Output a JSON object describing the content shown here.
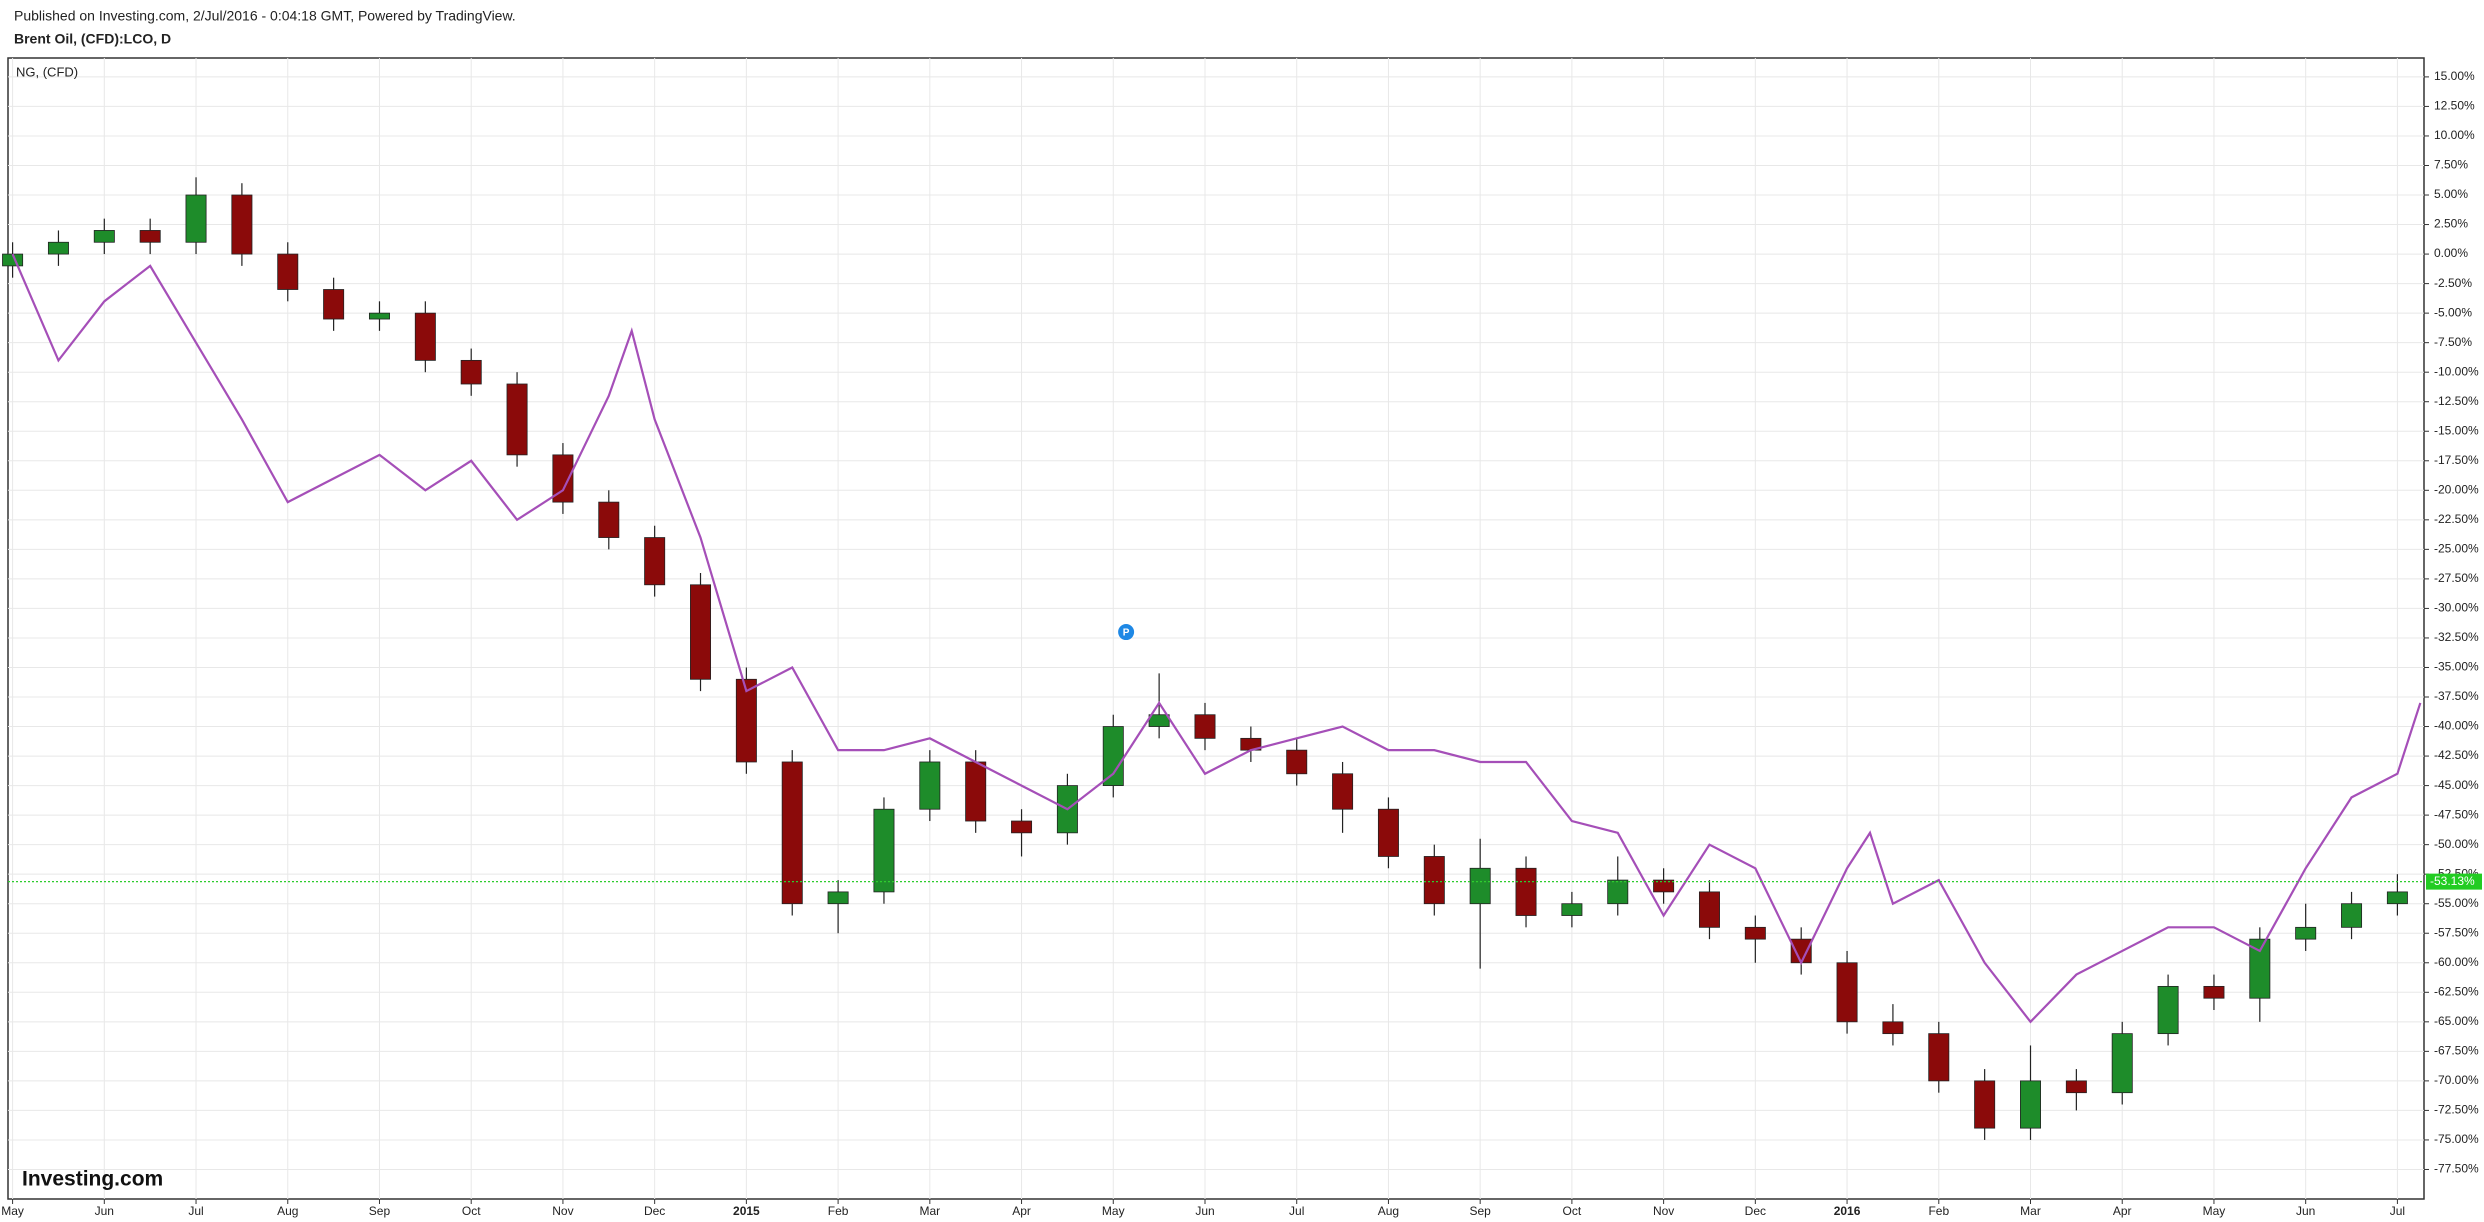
{
  "header": {
    "published": "Published on Investing.com, 2/Jul/2016 - 0:04:18 GMT, Powered by TradingView.",
    "watermark": "Investing.com"
  },
  "chart_data": {
    "type": "candlestick",
    "title": "Brent Oil, (CFD):LCO, D",
    "x": [
      0,
      0.5,
      1,
      1.5,
      2,
      2.5,
      3,
      3.5,
      4,
      4.5,
      5,
      5.5,
      6,
      6.5,
      7,
      7.5,
      8,
      8.5,
      9,
      9.5,
      10,
      10.5,
      11,
      11.5,
      12,
      12.5,
      13,
      13.5,
      14,
      14.5,
      15,
      15.5,
      16,
      16.5,
      17,
      17.5,
      18,
      18.5,
      19,
      19.5,
      20,
      20.5,
      21,
      21.5,
      22,
      22.5,
      23,
      23.5,
      24,
      24.5,
      25,
      25.5,
      26
    ],
    "open": [
      -1,
      0,
      1,
      2,
      1,
      5,
      0,
      -3,
      -5.5,
      -5,
      -9,
      -11,
      -17,
      -21,
      -24,
      -28,
      -36,
      -43,
      -55,
      -54,
      -47,
      -43,
      -48,
      -49,
      -45,
      -40,
      -39,
      -41,
      -42,
      -44,
      -47,
      -51,
      -55,
      -52,
      -56,
      -55,
      -53,
      -54,
      -57,
      -58,
      -60,
      -65,
      -66,
      -70,
      -74,
      -70,
      -71,
      -66,
      -62,
      -63,
      -58,
      -57,
      -55
    ],
    "high": [
      1,
      2,
      3,
      3,
      6.5,
      6,
      1,
      -2,
      -4,
      -4,
      -8,
      -10,
      -16,
      -20,
      -23,
      -27,
      -35,
      -42,
      -53,
      -46,
      -42,
      -42,
      -47,
      -44,
      -39,
      -35.5,
      -38,
      -40,
      -41,
      -43,
      -46,
      -50,
      -49.5,
      -51,
      -54,
      -51,
      -52,
      -53,
      -56,
      -57,
      -59,
      -63.5,
      -65,
      -69,
      -67,
      -69,
      -65,
      -61,
      -61,
      -57,
      -55,
      -54,
      -52.5
    ],
    "low": [
      -2,
      -1,
      0,
      0,
      0,
      -1,
      -4,
      -6.5,
      -6.5,
      -10,
      -12,
      -18,
      -22,
      -25,
      -29,
      -37,
      -44,
      -56,
      -57.5,
      -55,
      -48,
      -49,
      -51,
      -50,
      -46,
      -41,
      -42,
      -43,
      -45,
      -49,
      -52,
      -56,
      -60.5,
      -57,
      -57,
      -56,
      -55,
      -58,
      -60,
      -61,
      -66,
      -67,
      -71,
      -75,
      -75,
      -72.5,
      -72,
      -67,
      -64,
      -65,
      -59,
      -58,
      -56
    ],
    "close": [
      0,
      1,
      2,
      1,
      5,
      0,
      -3,
      -5.5,
      -5,
      -9,
      -11,
      -17,
      -21,
      -24,
      -28,
      -36,
      -43,
      -55,
      -54,
      -47,
      -43,
      -48,
      -49,
      -45,
      -40,
      -39,
      -41,
      -42,
      -44,
      -47,
      -51,
      -55,
      -52,
      -56,
      -55,
      -53,
      -54,
      -57,
      -58,
      -60,
      -65,
      -66,
      -70,
      -74,
      -70,
      -71,
      -66,
      -62,
      -63,
      -58,
      -57,
      -55,
      -54
    ],
    "up_color": "#1e8c2a",
    "down_color": "#8b0a0a",
    "overlay": {
      "type": "line",
      "name": "NG,  (CFD)",
      "color": "#a54fb8",
      "x": [
        0,
        0.5,
        1,
        1.5,
        2,
        2.5,
        3,
        3.5,
        4,
        4.5,
        5,
        5.5,
        6,
        6.5,
        6.75,
        7,
        7.5,
        8,
        8.5,
        9,
        9.5,
        10,
        10.5,
        11,
        11.5,
        12,
        12.5,
        13,
        13.5,
        14,
        14.5,
        15,
        15.5,
        16,
        16.5,
        17,
        17.5,
        18,
        18.5,
        19,
        19.5,
        20,
        20.25,
        20.5,
        21,
        21.5,
        22,
        22.5,
        23,
        23.5,
        24,
        24.5,
        25,
        25.5,
        26,
        26.25
      ],
      "values": [
        0,
        -9,
        -4,
        -1,
        -7.5,
        -14,
        -21,
        -19,
        -17,
        -20,
        -17.5,
        -22.5,
        -20,
        -12,
        -6.5,
        -14,
        -24,
        -37,
        -35,
        -42,
        -42,
        -41,
        -43,
        -45,
        -47,
        -44,
        -38,
        -44,
        -42,
        -41,
        -40,
        -42,
        -42,
        -43,
        -43,
        -48,
        -49,
        -56,
        -50,
        -52,
        -60,
        -52,
        -49,
        -55,
        -53,
        -60,
        -65,
        -61,
        -59,
        -57,
        -57,
        -59,
        -52,
        -46,
        -44,
        -38
      ]
    },
    "last": {
      "value": -53.13,
      "label": "-53.13%"
    },
    "marker": {
      "x": 12.14,
      "label": "P"
    },
    "xlim": [
      -0.05,
      26.29
    ],
    "ylim": [
      -80,
      16.6
    ],
    "grid": true,
    "xticks": [
      {
        "value": 0,
        "label": "May"
      },
      {
        "value": 1,
        "label": "Jun"
      },
      {
        "value": 2,
        "label": "Jul"
      },
      {
        "value": 3,
        "label": "Aug"
      },
      {
        "value": 4,
        "label": "Sep"
      },
      {
        "value": 5,
        "label": "Oct"
      },
      {
        "value": 6,
        "label": "Nov"
      },
      {
        "value": 7,
        "label": "Dec"
      },
      {
        "value": 8,
        "label": "2015"
      },
      {
        "value": 9,
        "label": "Feb"
      },
      {
        "value": 10,
        "label": "Mar"
      },
      {
        "value": 11,
        "label": "Apr"
      },
      {
        "value": 12,
        "label": "May"
      },
      {
        "value": 13,
        "label": "Jun"
      },
      {
        "value": 14,
        "label": "Jul"
      },
      {
        "value": 15,
        "label": "Aug"
      },
      {
        "value": 16,
        "label": "Sep"
      },
      {
        "value": 17,
        "label": "Oct"
      },
      {
        "value": 18,
        "label": "Nov"
      },
      {
        "value": 19,
        "label": "Dec"
      },
      {
        "value": 20,
        "label": "2016"
      },
      {
        "value": 21,
        "label": "Feb"
      },
      {
        "value": 22,
        "label": "Mar"
      },
      {
        "value": 23,
        "label": "Apr"
      },
      {
        "value": 24,
        "label": "May"
      },
      {
        "value": 25,
        "label": "Jun"
      },
      {
        "value": 26,
        "label": "Jul"
      }
    ],
    "yticks": [
      {
        "value": 15,
        "label": "15.00%"
      },
      {
        "value": 12.5,
        "label": "12.50%"
      },
      {
        "value": 10,
        "label": "10.00%"
      },
      {
        "value": 7.5,
        "label": "7.50%"
      },
      {
        "value": 5,
        "label": "5.00%"
      },
      {
        "value": 2.5,
        "label": "2.50%"
      },
      {
        "value": 0,
        "label": "0.00%"
      },
      {
        "value": -2.5,
        "label": "-2.50%"
      },
      {
        "value": -5,
        "label": "-5.00%"
      },
      {
        "value": -7.5,
        "label": "-7.50%"
      },
      {
        "value": -10,
        "label": "-10.00%"
      },
      {
        "value": -12.5,
        "label": "-12.50%"
      },
      {
        "value": -15,
        "label": "-15.00%"
      },
      {
        "value": -17.5,
        "label": "-17.50%"
      },
      {
        "value": -20,
        "label": "-20.00%"
      },
      {
        "value": -22.5,
        "label": "-22.50%"
      },
      {
        "value": -25,
        "label": "-25.00%"
      },
      {
        "value": -27.5,
        "label": "-27.50%"
      },
      {
        "value": -30,
        "label": "-30.00%"
      },
      {
        "value": -32.5,
        "label": "-32.50%"
      },
      {
        "value": -35,
        "label": "-35.00%"
      },
      {
        "value": -37.5,
        "label": "-37.50%"
      },
      {
        "value": -40,
        "label": "-40.00%"
      },
      {
        "value": -42.5,
        "label": "-42.50%"
      },
      {
        "value": -45,
        "label": "-45.00%"
      },
      {
        "value": -47.5,
        "label": "-47.50%"
      },
      {
        "value": -50,
        "label": "-50.00%"
      },
      {
        "value": -52.5,
        "label": "-52.50%"
      },
      {
        "value": -55,
        "label": "-55.00%"
      },
      {
        "value": -57.5,
        "label": "-57.50%"
      },
      {
        "value": -60,
        "label": "-60.00%"
      },
      {
        "value": -62.5,
        "label": "-62.50%"
      },
      {
        "value": -65,
        "label": "-65.00%"
      },
      {
        "value": -67.5,
        "label": "-67.50%"
      },
      {
        "value": -70,
        "label": "-70.00%"
      },
      {
        "value": -72.5,
        "label": "-72.50%"
      },
      {
        "value": -75,
        "label": "-75.00%"
      },
      {
        "value": -77.5,
        "label": "-77.50%"
      }
    ]
  }
}
